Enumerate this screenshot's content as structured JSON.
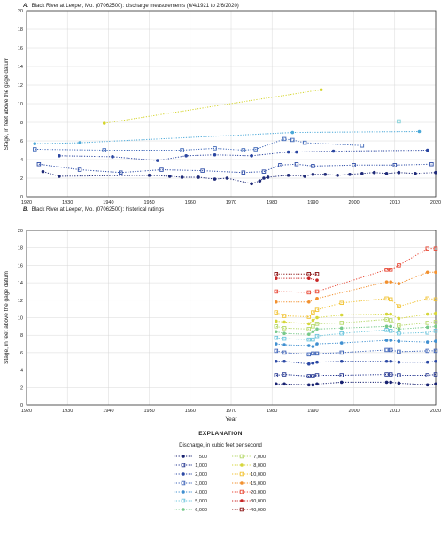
{
  "chart_data": [
    {
      "type": "scatter",
      "panel_letter": "A.",
      "title": "Black River at Leeper, Mo. (07062500): discharge measurements (6/4/1921 to 2/6/2020)",
      "xlabel": "",
      "ylabel": "Stage, in feet above the gage datum",
      "xlim": [
        1920,
        2020
      ],
      "ylim": [
        0,
        20
      ],
      "x_ticks": [
        "1920",
        "1930",
        "1940",
        "1950",
        "1960",
        "1970",
        "1980",
        "1990",
        "2000",
        "2010",
        "2020"
      ],
      "y_ticks": [
        "0",
        "2",
        "4",
        "6",
        "8",
        "10",
        "12",
        "14",
        "16",
        "18",
        "20"
      ],
      "grid": true,
      "series": [
        {
          "color": "#1f2a78",
          "marker": "circle",
          "x": [
            1924,
            1928,
            1950,
            1955,
            1958,
            1962,
            1966,
            1969,
            1975,
            1977,
            1978,
            1979,
            1984,
            1988,
            1990,
            1993,
            1996,
            1999,
            2002,
            2005,
            2008,
            2011,
            2015,
            2020
          ],
          "y": [
            2.7,
            2.2,
            2.3,
            2.2,
            2.1,
            2.1,
            1.9,
            2.0,
            1.4,
            1.7,
            2.0,
            2.1,
            2.3,
            2.2,
            2.4,
            2.4,
            2.3,
            2.4,
            2.5,
            2.6,
            2.5,
            2.6,
            2.5,
            2.6
          ]
        },
        {
          "color": "#2f4ea8",
          "marker": "square",
          "x": [
            1923,
            1933,
            1943,
            1953,
            1963,
            1973,
            1978,
            1982,
            1986,
            1990,
            2000,
            2010,
            2019
          ],
          "y": [
            3.5,
            2.9,
            2.6,
            2.9,
            2.8,
            2.6,
            2.7,
            3.4,
            3.5,
            3.3,
            3.4,
            3.4,
            3.5
          ]
        },
        {
          "color": "#2a45a0",
          "marker": "circle",
          "x": [
            1928,
            1941,
            1952,
            1959,
            1966,
            1975,
            1984,
            1986,
            1995,
            2018
          ],
          "y": [
            4.4,
            4.3,
            3.9,
            4.4,
            4.5,
            4.4,
            4.8,
            4.8,
            4.9,
            5.0
          ]
        },
        {
          "color": "#3f68b8",
          "marker": "square",
          "x": [
            1922,
            1939,
            1958,
            1966,
            1973,
            1976,
            1983,
            1985,
            1988,
            2002
          ],
          "y": [
            5.1,
            5.0,
            5.0,
            5.2,
            5.0,
            5.1,
            6.2,
            6.1,
            5.8,
            5.5
          ]
        },
        {
          "color": "#4aa8d8",
          "marker": "circle",
          "x": [
            1922,
            1933,
            1985,
            2016
          ],
          "y": [
            5.7,
            5.8,
            6.9,
            7.0
          ]
        },
        {
          "color": "#7fd0d8",
          "marker": "square",
          "x": [
            2011
          ],
          "y": [
            8.1
          ]
        },
        {
          "color": "#d4d42a",
          "marker": "circle",
          "x": [
            1939,
            1992
          ],
          "y": [
            7.9,
            11.5
          ]
        }
      ]
    },
    {
      "type": "line",
      "panel_letter": "B.",
      "title": "Black River at Leeper, Mo. (07062500): historical ratings",
      "xlabel": "Year",
      "ylabel": "Stage, in feet above the gage datum",
      "xlim": [
        1920,
        2020
      ],
      "ylim": [
        0,
        20
      ],
      "x_ticks": [
        "1920",
        "1930",
        "1940",
        "1950",
        "1960",
        "1970",
        "1980",
        "1990",
        "2000",
        "2010",
        "2020"
      ],
      "y_ticks": [
        "0",
        "2",
        "4",
        "6",
        "8",
        "10",
        "12",
        "14",
        "16",
        "18",
        "20"
      ],
      "grid": true,
      "x": [
        1981,
        1983,
        1989,
        1990,
        1991,
        1997,
        2008,
        2009,
        2011,
        2018,
        2020
      ],
      "series": [
        {
          "name": "500",
          "color": "#172170",
          "marker": "circle",
          "values": [
            2.4,
            2.4,
            2.3,
            2.3,
            2.4,
            2.6,
            2.6,
            2.6,
            2.5,
            2.3,
            2.4
          ]
        },
        {
          "name": "1,000",
          "color": "#22348f",
          "marker": "square",
          "values": [
            3.4,
            3.5,
            3.3,
            3.3,
            3.4,
            3.4,
            3.5,
            3.5,
            3.4,
            3.4,
            3.5
          ]
        },
        {
          "name": "2,000",
          "color": "#2b48a4",
          "marker": "circle",
          "values": [
            5.0,
            5.0,
            4.7,
            4.8,
            4.9,
            5.0,
            5.0,
            5.0,
            4.9,
            4.9,
            5.0
          ]
        },
        {
          "name": "3,000",
          "color": "#3a60b6",
          "marker": "square",
          "values": [
            6.2,
            6.0,
            5.8,
            5.9,
            5.9,
            6.0,
            6.3,
            6.3,
            6.1,
            6.2,
            6.2
          ]
        },
        {
          "name": "4,000",
          "color": "#3f8fd0",
          "marker": "circle",
          "values": [
            7.0,
            6.9,
            6.8,
            6.7,
            7.0,
            7.1,
            7.4,
            7.4,
            7.3,
            7.2,
            7.3
          ]
        },
        {
          "name": "5,000",
          "color": "#6ac4dc",
          "marker": "square",
          "values": [
            7.7,
            7.6,
            7.5,
            7.5,
            7.9,
            8.2,
            8.6,
            8.5,
            8.2,
            8.3,
            8.5
          ]
        },
        {
          "name": "6,000",
          "color": "#77c98a",
          "marker": "circle",
          "values": [
            8.4,
            8.2,
            8.1,
            8.4,
            8.7,
            8.8,
            9.0,
            9.0,
            8.7,
            8.9,
            9.0
          ]
        },
        {
          "name": "7,000",
          "color": "#b6d86a",
          "marker": "square",
          "values": [
            9.0,
            8.8,
            8.7,
            9.0,
            9.3,
            9.4,
            9.8,
            9.7,
            9.1,
            9.4,
            9.5
          ]
        },
        {
          "name": "8,000",
          "color": "#d6d63a",
          "marker": "circle",
          "values": [
            9.6,
            9.5,
            9.3,
            9.7,
            10.0,
            10.3,
            10.4,
            10.4,
            9.9,
            10.4,
            10.5
          ]
        },
        {
          "name": "10,000",
          "color": "#f1c232",
          "marker": "square",
          "values": [
            10.6,
            10.2,
            10.1,
            10.6,
            10.9,
            11.7,
            12.2,
            12.1,
            11.3,
            12.2,
            12.1
          ]
        },
        {
          "name": "15,000",
          "color": "#f2902e",
          "marker": "circle",
          "values": [
            11.8,
            null,
            11.8,
            null,
            12.2,
            null,
            14.1,
            14.1,
            13.9,
            15.2,
            15.2
          ]
        },
        {
          "name": "20,000",
          "color": "#e84a38",
          "marker": "square",
          "values": [
            13.0,
            null,
            12.9,
            null,
            13.0,
            null,
            15.5,
            15.5,
            16.0,
            17.9,
            17.9
          ]
        },
        {
          "name": "30,000",
          "color": "#c82424",
          "marker": "circle",
          "values": [
            14.5,
            null,
            14.5,
            null,
            14.3,
            null,
            null,
            null,
            null,
            null,
            null
          ]
        },
        {
          "name": "40,000",
          "color": "#8b1414",
          "marker": "square",
          "values": [
            15.0,
            null,
            15.0,
            null,
            15.0,
            null,
            null,
            null,
            null,
            null,
            null
          ]
        }
      ]
    }
  ],
  "explanation": {
    "heading": "EXPLANATION",
    "subheading": "Discharge, in cubic feet per second"
  }
}
